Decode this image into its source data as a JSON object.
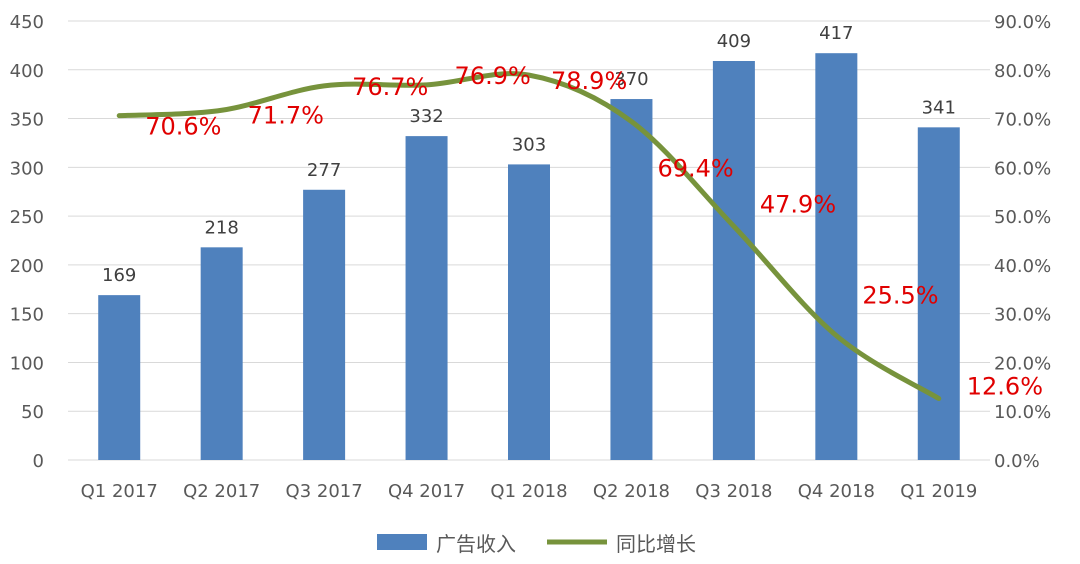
{
  "chart_data": {
    "type": "bar",
    "categories": [
      "Q1 2017",
      "Q2 2017",
      "Q3 2017",
      "Q4 2017",
      "Q1 2018",
      "Q2 2018",
      "Q3 2018",
      "Q4 2018",
      "Q1 2019"
    ],
    "series": [
      {
        "name": "广告收入",
        "type": "bar",
        "axis": "left",
        "color": "#4f81bd",
        "values": [
          169,
          218,
          277,
          332,
          303,
          370,
          409,
          417,
          341
        ],
        "labels": [
          "169",
          "218",
          "277",
          "332",
          "303",
          "370",
          "409",
          "417",
          "341"
        ]
      },
      {
        "name": "同比增长",
        "type": "line",
        "axis": "right",
        "color": "#77933c",
        "values": [
          70.6,
          71.7,
          76.7,
          76.9,
          78.9,
          69.4,
          47.9,
          25.5,
          12.6
        ],
        "labels": [
          "70.6%",
          "71.7%",
          "76.7%",
          "76.9%",
          "78.9%",
          "69.4%",
          "47.9%",
          "25.5%",
          "12.6%"
        ],
        "label_color": "#e00000"
      }
    ],
    "y_left": {
      "min": 0,
      "max": 450,
      "ticks": [
        "0",
        "50",
        "100",
        "150",
        "200",
        "250",
        "300",
        "350",
        "400",
        "450"
      ]
    },
    "y_right": {
      "min": 0,
      "max": 90,
      "ticks": [
        "0.0%",
        "10.0%",
        "20.0%",
        "30.0%",
        "40.0%",
        "50.0%",
        "60.0%",
        "70.0%",
        "80.0%",
        "90.0%"
      ]
    },
    "grid": true,
    "legend": "bottom"
  }
}
